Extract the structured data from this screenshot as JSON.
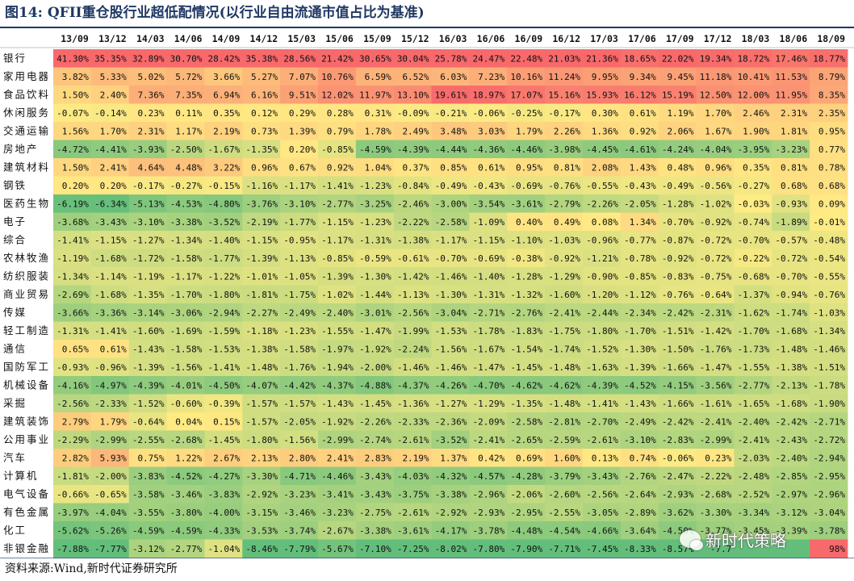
{
  "header": {
    "title": "图14:   QFII重仓股行业超低配情况(以行业自由流通市值占比为基准)"
  },
  "footer": {
    "source": "资料来源:Wind,新时代证券研究所"
  },
  "watermark": {
    "text": "新时代策略",
    "icon": "wechat-logo-icon"
  },
  "colors": {
    "high": "#f8696b",
    "mid": "#ffeb84",
    "low": "#63be7b",
    "title": "#1f3864"
  },
  "chart_data": {
    "type": "heatmap",
    "columns": [
      "13/09",
      "13/12",
      "14/03",
      "14/06",
      "14/09",
      "14/12",
      "15/03",
      "15/06",
      "15/09",
      "15/12",
      "16/03",
      "16/06",
      "16/09",
      "16/12",
      "17/03",
      "17/06",
      "17/09",
      "17/12",
      "18/03",
      "18/06",
      "18/09"
    ],
    "rows": [
      {
        "name": "银行",
        "values": [
          "41.30%",
          "35.35%",
          "32.89%",
          "30.70%",
          "28.42%",
          "35.38%",
          "28.56%",
          "21.42%",
          "30.65%",
          "30.04%",
          "25.78%",
          "24.47%",
          "22.48%",
          "21.03%",
          "21.36%",
          "18.65%",
          "22.02%",
          "19.34%",
          "18.72%",
          "17.46%",
          "18.77%"
        ]
      },
      {
        "name": "家用电器",
        "values": [
          "3.82%",
          "5.33%",
          "5.02%",
          "5.72%",
          "3.66%",
          "5.27%",
          "7.07%",
          "10.76%",
          "6.59%",
          "6.52%",
          "6.03%",
          "7.23%",
          "10.16%",
          "11.24%",
          "9.95%",
          "9.34%",
          "9.45%",
          "11.18%",
          "10.41%",
          "11.53%",
          "8.79%"
        ]
      },
      {
        "name": "食品饮料",
        "values": [
          "1.50%",
          "2.40%",
          "7.36%",
          "7.35%",
          "6.94%",
          "6.16%",
          "9.51%",
          "12.02%",
          "11.97%",
          "13.10%",
          "19.61%",
          "18.97%",
          "17.07%",
          "15.16%",
          "15.93%",
          "16.12%",
          "15.19%",
          "12.50%",
          "12.00%",
          "11.95%",
          "8.35%"
        ]
      },
      {
        "name": "休闲服务",
        "values": [
          "-0.07%",
          "-0.14%",
          "0.23%",
          "0.11%",
          "0.35%",
          "0.12%",
          "0.29%",
          "0.28%",
          "0.31%",
          "-0.09%",
          "-0.21%",
          "-0.06%",
          "-0.25%",
          "-0.17%",
          "0.30%",
          "0.61%",
          "1.19%",
          "1.70%",
          "2.46%",
          "2.31%",
          "2.35%"
        ]
      },
      {
        "name": "交通运输",
        "values": [
          "1.56%",
          "1.70%",
          "2.31%",
          "1.17%",
          "2.19%",
          "0.73%",
          "1.39%",
          "0.79%",
          "1.78%",
          "2.49%",
          "3.48%",
          "3.03%",
          "1.79%",
          "2.26%",
          "1.36%",
          "0.92%",
          "2.06%",
          "1.67%",
          "1.90%",
          "1.81%",
          "0.95%"
        ]
      },
      {
        "name": "房地产",
        "values": [
          "-4.72%",
          "-4.41%",
          "-3.93%",
          "-2.50%",
          "-1.67%",
          "-1.35%",
          "0.20%",
          "-0.85%",
          "-4.59%",
          "-4.39%",
          "-4.44%",
          "-4.36%",
          "-4.46%",
          "-3.98%",
          "-4.45%",
          "-4.61%",
          "-4.24%",
          "-4.04%",
          "-3.95%",
          "-3.23%",
          "0.77%"
        ]
      },
      {
        "name": "建筑材料",
        "values": [
          "1.50%",
          "2.41%",
          "4.64%",
          "4.48%",
          "3.22%",
          "0.96%",
          "0.67%",
          "0.92%",
          "1.04%",
          "0.37%",
          "0.85%",
          "0.61%",
          "0.95%",
          "0.81%",
          "2.08%",
          "1.43%",
          "0.48%",
          "0.96%",
          "0.35%",
          "0.81%",
          "0.78%"
        ]
      },
      {
        "name": "钢铁",
        "values": [
          "0.20%",
          "0.20%",
          "-0.17%",
          "-0.27%",
          "-0.15%",
          "-1.16%",
          "-1.17%",
          "-1.41%",
          "-1.23%",
          "-0.84%",
          "-0.49%",
          "-0.43%",
          "-0.69%",
          "-0.76%",
          "-0.55%",
          "-0.43%",
          "-0.49%",
          "-0.56%",
          "-0.27%",
          "0.68%",
          "0.68%"
        ]
      },
      {
        "name": "医药生物",
        "values": [
          "-6.19%",
          "-6.34%",
          "-5.13%",
          "-4.53%",
          "-4.80%",
          "-3.76%",
          "-3.10%",
          "-2.77%",
          "-3.25%",
          "-2.46%",
          "-3.00%",
          "-3.54%",
          "-3.61%",
          "-2.79%",
          "-2.26%",
          "-2.05%",
          "-1.28%",
          "-1.02%",
          "-0.03%",
          "-0.93%",
          "0.09%"
        ]
      },
      {
        "name": "电子",
        "values": [
          "-3.68%",
          "-3.43%",
          "-3.10%",
          "-3.38%",
          "-3.52%",
          "-2.19%",
          "-1.77%",
          "-1.15%",
          "-1.23%",
          "-2.22%",
          "-2.58%",
          "-1.09%",
          "0.40%",
          "0.49%",
          "0.08%",
          "1.34%",
          "-0.70%",
          "-0.92%",
          "-0.74%",
          "-1.89%",
          "-0.01%"
        ]
      },
      {
        "name": "综合",
        "values": [
          "-1.41%",
          "-1.15%",
          "-1.27%",
          "-1.34%",
          "-1.40%",
          "-1.15%",
          "-0.95%",
          "-1.17%",
          "-1.31%",
          "-1.38%",
          "-1.17%",
          "-1.15%",
          "-1.10%",
          "-1.03%",
          "-0.96%",
          "-0.77%",
          "-0.87%",
          "-0.72%",
          "-0.70%",
          "-0.57%",
          "-0.48%"
        ]
      },
      {
        "name": "农林牧渔",
        "values": [
          "-1.19%",
          "-1.68%",
          "-1.72%",
          "-1.58%",
          "-1.77%",
          "-1.39%",
          "-1.13%",
          "-0.85%",
          "-0.59%",
          "-0.61%",
          "-0.70%",
          "-0.69%",
          "-0.38%",
          "-0.92%",
          "-1.21%",
          "-0.78%",
          "-0.92%",
          "-0.72%",
          "-0.22%",
          "-0.72%",
          "-0.54%"
        ]
      },
      {
        "name": "纺织服装",
        "values": [
          "-1.34%",
          "-1.14%",
          "-1.19%",
          "-1.17%",
          "-1.22%",
          "-1.01%",
          "-1.05%",
          "-1.39%",
          "-1.30%",
          "-1.42%",
          "-1.46%",
          "-1.40%",
          "-1.28%",
          "-1.29%",
          "-0.90%",
          "-0.85%",
          "-0.83%",
          "-0.75%",
          "-0.68%",
          "-0.70%",
          "-0.55%"
        ]
      },
      {
        "name": "商业贸易",
        "values": [
          "-2.69%",
          "-1.68%",
          "-1.35%",
          "-1.70%",
          "-1.80%",
          "-1.81%",
          "-1.75%",
          "-1.02%",
          "-1.44%",
          "-1.13%",
          "-1.30%",
          "-1.31%",
          "-1.32%",
          "-1.60%",
          "-1.20%",
          "-1.12%",
          "-0.76%",
          "-0.64%",
          "-1.37%",
          "-0.94%",
          "-0.76%"
        ]
      },
      {
        "name": "传媒",
        "values": [
          "-3.66%",
          "-3.36%",
          "-3.14%",
          "-3.06%",
          "-2.94%",
          "-2.27%",
          "-2.49%",
          "-2.40%",
          "-3.01%",
          "-2.56%",
          "-3.04%",
          "-2.71%",
          "-2.76%",
          "-2.41%",
          "-2.44%",
          "-2.34%",
          "-2.42%",
          "-2.31%",
          "-1.62%",
          "-1.74%",
          "-1.03%"
        ]
      },
      {
        "name": "轻工制造",
        "values": [
          "-1.31%",
          "-1.41%",
          "-1.60%",
          "-1.69%",
          "-1.59%",
          "-1.18%",
          "-1.23%",
          "-1.55%",
          "-1.47%",
          "-1.99%",
          "-1.53%",
          "-1.78%",
          "-1.83%",
          "-1.75%",
          "-1.80%",
          "-1.70%",
          "-1.51%",
          "-1.42%",
          "-1.70%",
          "-1.68%",
          "-1.34%"
        ]
      },
      {
        "name": "通信",
        "values": [
          "0.65%",
          "0.61%",
          "-1.43%",
          "-1.58%",
          "-1.53%",
          "-1.38%",
          "-1.58%",
          "-1.97%",
          "-1.92%",
          "-2.24%",
          "-1.56%",
          "-1.67%",
          "-1.54%",
          "-1.74%",
          "-1.52%",
          "-1.30%",
          "-1.50%",
          "-1.76%",
          "-1.73%",
          "-1.48%",
          "-1.46%"
        ]
      },
      {
        "name": "国防军工",
        "values": [
          "-0.93%",
          "-0.96%",
          "-1.39%",
          "-1.56%",
          "-1.41%",
          "-1.48%",
          "-1.76%",
          "-1.94%",
          "-2.00%",
          "-1.46%",
          "-1.46%",
          "-1.47%",
          "-1.45%",
          "-1.48%",
          "-1.63%",
          "-1.39%",
          "-1.66%",
          "-1.47%",
          "-1.55%",
          "-1.38%",
          "-1.51%"
        ]
      },
      {
        "name": "机械设备",
        "values": [
          "-4.16%",
          "-4.97%",
          "-4.39%",
          "-4.01%",
          "-4.50%",
          "-4.07%",
          "-4.42%",
          "-4.37%",
          "-4.88%",
          "-4.37%",
          "-4.26%",
          "-4.70%",
          "-4.62%",
          "-4.62%",
          "-4.39%",
          "-4.52%",
          "-4.15%",
          "-3.56%",
          "-2.77%",
          "-2.13%",
          "-1.78%"
        ]
      },
      {
        "name": "采掘",
        "values": [
          "-2.56%",
          "-2.33%",
          "-1.52%",
          "-0.60%",
          "-0.39%",
          "-1.57%",
          "-1.57%",
          "-1.43%",
          "-1.45%",
          "-1.36%",
          "-1.27%",
          "-1.29%",
          "-1.35%",
          "-1.48%",
          "-1.41%",
          "-1.43%",
          "-1.66%",
          "-1.61%",
          "-1.65%",
          "-1.68%",
          "-1.90%"
        ]
      },
      {
        "name": "建筑装饰",
        "values": [
          "2.79%",
          "1.79%",
          "-0.64%",
          "0.04%",
          "0.15%",
          "-1.57%",
          "-2.05%",
          "-1.92%",
          "-2.26%",
          "-2.33%",
          "-2.36%",
          "-2.09%",
          "-2.58%",
          "-2.81%",
          "-2.70%",
          "-2.49%",
          "-2.42%",
          "-2.41%",
          "-2.40%",
          "-2.42%",
          "-2.71%"
        ]
      },
      {
        "name": "公用事业",
        "values": [
          "-2.29%",
          "-2.99%",
          "-2.55%",
          "-2.68%",
          "-1.45%",
          "-1.80%",
          "-1.56%",
          "-2.99%",
          "-2.74%",
          "-2.61%",
          "-3.52%",
          "-2.41%",
          "-2.65%",
          "-2.59%",
          "-2.61%",
          "-3.10%",
          "-2.83%",
          "-2.99%",
          "-2.41%",
          "-2.43%",
          "-2.72%"
        ]
      },
      {
        "name": "汽车",
        "values": [
          "2.82%",
          "5.93%",
          "0.75%",
          "1.22%",
          "2.67%",
          "2.13%",
          "2.80%",
          "2.41%",
          "2.83%",
          "2.19%",
          "1.37%",
          "0.42%",
          "0.69%",
          "1.60%",
          "0.13%",
          "0.74%",
          "-0.06%",
          "0.23%",
          "-2.03%",
          "-2.40%",
          "-2.94%"
        ]
      },
      {
        "name": "计算机",
        "values": [
          "-1.81%",
          "-2.00%",
          "-3.83%",
          "-4.52%",
          "-4.27%",
          "-3.30%",
          "-4.71%",
          "-4.46%",
          "-3.43%",
          "-4.03%",
          "-4.32%",
          "-4.57%",
          "-4.28%",
          "-3.79%",
          "-3.43%",
          "-2.76%",
          "-2.47%",
          "-2.22%",
          "-2.48%",
          "-2.85%",
          "-2.95%"
        ]
      },
      {
        "name": "电气设备",
        "values": [
          "-0.66%",
          "-0.65%",
          "-3.58%",
          "-3.46%",
          "-3.83%",
          "-2.92%",
          "-3.23%",
          "-3.41%",
          "-3.43%",
          "-3.75%",
          "-3.38%",
          "-2.96%",
          "-2.06%",
          "-2.60%",
          "-2.56%",
          "-2.64%",
          "-2.93%",
          "-2.68%",
          "-2.52%",
          "-2.97%",
          "-2.96%"
        ]
      },
      {
        "name": "有色金属",
        "values": [
          "-3.97%",
          "-4.04%",
          "-3.55%",
          "-3.80%",
          "-4.00%",
          "-3.15%",
          "-3.46%",
          "-3.23%",
          "-2.75%",
          "-2.61%",
          "-2.92%",
          "-2.93%",
          "-2.95%",
          "-2.55%",
          "-3.05%",
          "-2.89%",
          "-3.62%",
          "-3.30%",
          "-3.34%",
          "-3.12%",
          "-3.04%"
        ]
      },
      {
        "name": "化工",
        "values": [
          "-5.62%",
          "-5.26%",
          "-4.59%",
          "-4.59%",
          "-4.33%",
          "-3.53%",
          "-3.74%",
          "-2.67%",
          "-3.38%",
          "-3.61%",
          "-4.17%",
          "-3.78%",
          "-4.48%",
          "-4.54%",
          "-4.66%",
          "-3.64%",
          "-4.50%",
          "-3.77%",
          "-3.45%",
          "-3.39%",
          "-3.78%"
        ]
      },
      {
        "name": "非银金融",
        "values": [
          "-7.88%",
          "-7.77%",
          "-3.12%",
          "-2.77%",
          "-1.04%",
          "-8.46%",
          "-7.79%",
          "-5.67%",
          "-7.10%",
          "-7.25%",
          "-8.02%",
          "-7.80%",
          "-7.90%",
          "-7.71%",
          "-7.45%",
          "-8.33%",
          "-8.57%",
          "-7.7",
          "",
          "",
          "98%"
        ]
      }
    ]
  }
}
